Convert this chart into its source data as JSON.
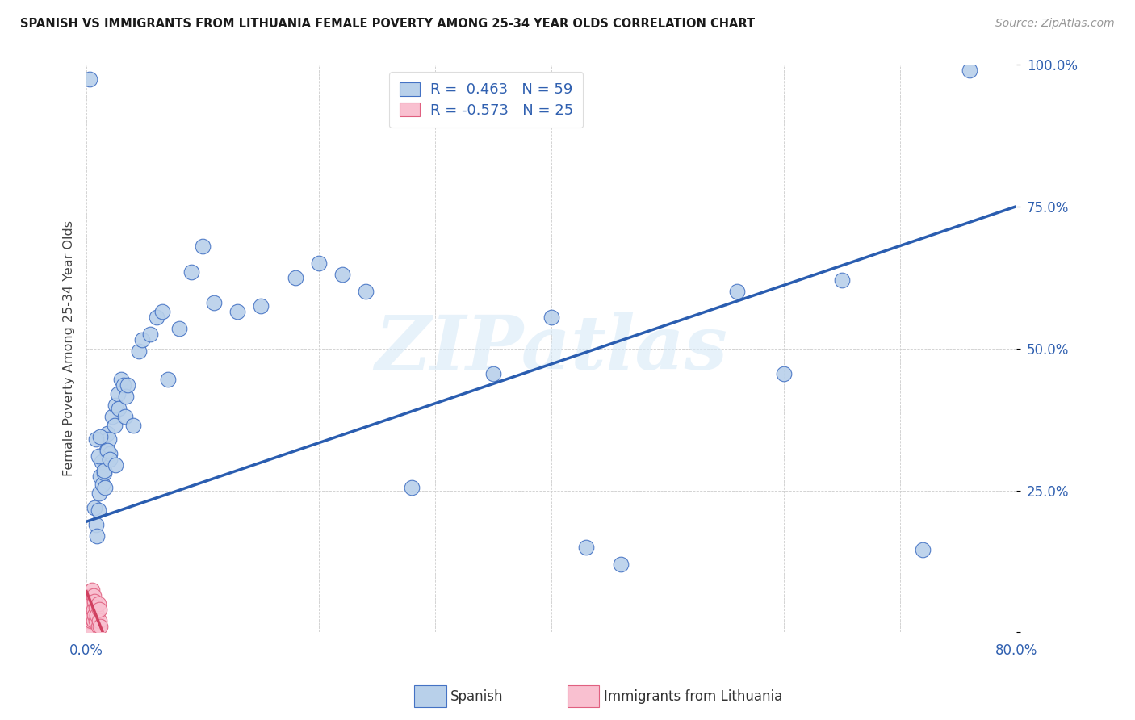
{
  "title": "SPANISH VS IMMIGRANTS FROM LITHUANIA FEMALE POVERTY AMONG 25-34 YEAR OLDS CORRELATION CHART",
  "source": "Source: ZipAtlas.com",
  "ylabel": "Female Poverty Among 25-34 Year Olds",
  "xlim": [
    0.0,
    0.8
  ],
  "ylim": [
    0.0,
    1.0
  ],
  "spanish_R": 0.463,
  "spanish_N": 59,
  "lithuania_R": -0.573,
  "lithuania_N": 25,
  "spanish_color": "#b8d0ea",
  "spanish_edge_color": "#4472c4",
  "spanish_line_color": "#2a5db0",
  "lithuania_color": "#f9c0d0",
  "lithuania_edge_color": "#e06080",
  "lithuania_line_color": "#d04060",
  "watermark": "ZIPatlas",
  "spanish_scatter_x": [
    0.003,
    0.007,
    0.008,
    0.009,
    0.01,
    0.011,
    0.012,
    0.013,
    0.014,
    0.015,
    0.016,
    0.017,
    0.018,
    0.019,
    0.02,
    0.022,
    0.024,
    0.025,
    0.027,
    0.028,
    0.03,
    0.032,
    0.033,
    0.034,
    0.035,
    0.04,
    0.045,
    0.048,
    0.055,
    0.06,
    0.065,
    0.07,
    0.08,
    0.09,
    0.1,
    0.11,
    0.13,
    0.15,
    0.18,
    0.2,
    0.22,
    0.24,
    0.28,
    0.35,
    0.4,
    0.43,
    0.46,
    0.56,
    0.6,
    0.65,
    0.72,
    0.76,
    0.008,
    0.01,
    0.012,
    0.015,
    0.018,
    0.02,
    0.025
  ],
  "spanish_scatter_y": [
    0.975,
    0.22,
    0.19,
    0.17,
    0.215,
    0.245,
    0.275,
    0.3,
    0.26,
    0.28,
    0.255,
    0.32,
    0.35,
    0.34,
    0.315,
    0.38,
    0.365,
    0.4,
    0.42,
    0.395,
    0.445,
    0.435,
    0.38,
    0.415,
    0.435,
    0.365,
    0.495,
    0.515,
    0.525,
    0.555,
    0.565,
    0.445,
    0.535,
    0.635,
    0.68,
    0.58,
    0.565,
    0.575,
    0.625,
    0.65,
    0.63,
    0.6,
    0.255,
    0.455,
    0.555,
    0.15,
    0.12,
    0.6,
    0.455,
    0.62,
    0.145,
    0.99,
    0.34,
    0.31,
    0.345,
    0.285,
    0.32,
    0.305,
    0.295
  ],
  "lithuania_scatter_x": [
    0.001,
    0.002,
    0.002,
    0.003,
    0.003,
    0.003,
    0.004,
    0.004,
    0.004,
    0.005,
    0.005,
    0.005,
    0.006,
    0.006,
    0.006,
    0.007,
    0.007,
    0.008,
    0.008,
    0.009,
    0.01,
    0.01,
    0.011,
    0.011,
    0.012
  ],
  "lithuania_scatter_y": [
    0.02,
    0.02,
    0.045,
    0.01,
    0.03,
    0.055,
    0.02,
    0.04,
    0.065,
    0.025,
    0.05,
    0.075,
    0.02,
    0.04,
    0.065,
    0.03,
    0.055,
    0.02,
    0.045,
    0.03,
    0.01,
    0.05,
    0.02,
    0.04,
    0.01
  ],
  "spanish_line_x0": 0.0,
  "spanish_line_y0": 0.195,
  "spanish_line_x1": 0.8,
  "spanish_line_y1": 0.75,
  "lithuania_line_x0": 0.0,
  "lithuania_line_y0": 0.072,
  "lithuania_line_x1": 0.014,
  "lithuania_line_y1": 0.0
}
